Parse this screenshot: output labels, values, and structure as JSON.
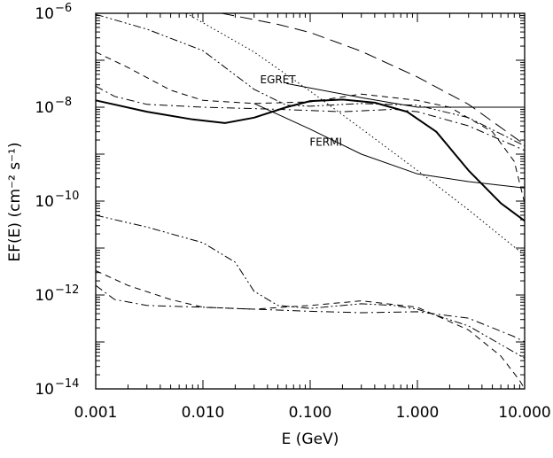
{
  "chart_data": {
    "type": "line",
    "xscale": "log",
    "yscale": "log",
    "xlim": [
      0.001,
      10.0
    ],
    "ylim": [
      1e-14,
      1e-06
    ],
    "xlabel": "E (GeV)",
    "ylabel": "EF(E)  (cm⁻² s⁻¹)",
    "xticks": [
      {
        "value": 0.001,
        "label": "0.001"
      },
      {
        "value": 0.01,
        "label": "0.010"
      },
      {
        "value": 0.1,
        "label": "0.100"
      },
      {
        "value": 1.0,
        "label": "1.000"
      },
      {
        "value": 10.0,
        "label": "10.000"
      }
    ],
    "yticks": [
      {
        "value": 1e-14,
        "base": "10",
        "exp": "−14"
      },
      {
        "value": 1e-12,
        "base": "10",
        "exp": "−12"
      },
      {
        "value": 1e-10,
        "base": "10",
        "exp": "−10"
      },
      {
        "value": 1e-08,
        "base": "10",
        "exp": "−8"
      },
      {
        "value": 1e-06,
        "base": "10",
        "exp": "−6"
      }
    ],
    "annotations": [
      {
        "text": "EGRET",
        "x": 0.05,
        "y": 3.2e-08
      },
      {
        "text": "FERMI",
        "x": 0.14,
        "y": 1.5e-09
      }
    ],
    "series": [
      {
        "style": "solid-thick",
        "x": [
          0.001,
          0.003,
          0.008,
          0.016,
          0.03,
          0.06,
          0.1,
          0.2,
          0.4,
          0.8,
          1.5,
          3.0,
          6.0,
          10.0
        ],
        "y": [
          1.4e-08,
          8e-09,
          5.5e-09,
          4.6e-09,
          6e-09,
          1e-08,
          1.35e-08,
          1.45e-08,
          1.25e-08,
          8e-09,
          3e-09,
          4.5e-10,
          9e-11,
          3.8e-11
        ]
      },
      {
        "style": "solid-thin-egret",
        "x": [
          0.06,
          0.3,
          1.0,
          10.0
        ],
        "y": [
          3.2e-08,
          1.6e-08,
          1e-08,
          1e-08
        ]
      },
      {
        "style": "solid-thin-fermi",
        "x": [
          0.03,
          0.1,
          0.3,
          1.0,
          3.0,
          10.0
        ],
        "y": [
          1.2e-08,
          3.4e-09,
          1e-09,
          3.8e-10,
          2.6e-10,
          1.9e-10
        ]
      },
      {
        "style": "long-dash",
        "x": [
          0.015,
          0.05,
          0.1,
          0.3,
          1.0,
          3.0,
          10.0
        ],
        "y": [
          1e-06,
          5.8e-07,
          3.9e-07,
          1.55e-07,
          4.4e-08,
          1.15e-08,
          1.6e-09
        ]
      },
      {
        "style": "dotted",
        "x": [
          0.007,
          0.03,
          0.1,
          0.3,
          1.0,
          3.0,
          10.0
        ],
        "y": [
          1e-06,
          1.5e-07,
          2.2e-08,
          3.5e-09,
          4.5e-10,
          6.5e-11,
          7e-12
        ]
      },
      {
        "style": "dash-dot-dot",
        "x": [
          0.001,
          0.003,
          0.01,
          0.03,
          0.06,
          0.1,
          0.3,
          1.0,
          3.0,
          10.0
        ],
        "y": [
          9.5e-07,
          4.6e-07,
          1.6e-07,
          2.4e-08,
          1.1e-08,
          1.05e-08,
          1.2e-08,
          1.1e-08,
          6e-09,
          1.5e-09
        ]
      },
      {
        "style": "dashed",
        "x": [
          0.001,
          0.002,
          0.005,
          0.01,
          0.03,
          0.1,
          0.3,
          1.0,
          2.0,
          5.0,
          8.0,
          10.0
        ],
        "y": [
          1.5e-07,
          7e-08,
          2.3e-08,
          1.4e-08,
          1.2e-08,
          1.3e-08,
          1.9e-08,
          1.4e-08,
          1e-08,
          3e-09,
          7e-10,
          9e-11
        ]
      },
      {
        "style": "dash-dot",
        "x": [
          0.001,
          0.0015,
          0.003,
          0.01,
          0.05,
          0.2,
          0.6,
          1.0,
          3.0,
          10.0
        ],
        "y": [
          2.8e-08,
          1.7e-08,
          1.15e-08,
          1e-08,
          9e-09,
          8e-09,
          9e-09,
          8e-09,
          4e-09,
          1.2e-09
        ]
      },
      {
        "style": "dash-dot-dot",
        "x": [
          0.001,
          0.003,
          0.01,
          0.02,
          0.03,
          0.05,
          0.1,
          0.3,
          0.6,
          1.0,
          3.0,
          10.0
        ],
        "y": [
          5e-11,
          2.8e-11,
          1.3e-11,
          5e-12,
          1.2e-12,
          6e-13,
          5.2e-13,
          6.5e-13,
          6e-13,
          5e-13,
          2.2e-13,
          4.5e-14
        ]
      },
      {
        "style": "dashed",
        "x": [
          0.001,
          0.002,
          0.005,
          0.01,
          0.03,
          0.1,
          0.3,
          1.0,
          3.0,
          6.0,
          9.0,
          10.0
        ],
        "y": [
          3.3e-12,
          1.6e-12,
          8e-13,
          5.5e-13,
          5e-13,
          6e-13,
          7.5e-13,
          5.5e-13,
          1.8e-13,
          5e-14,
          1.5e-14,
          1e-14
        ]
      },
      {
        "style": "dash-dot",
        "x": [
          0.001,
          0.0015,
          0.003,
          0.01,
          0.03,
          0.1,
          0.3,
          1.0,
          3.0,
          8.0,
          10.0
        ],
        "y": [
          1.6e-12,
          8e-13,
          6e-13,
          5.5e-13,
          5e-13,
          4.5e-13,
          4.2e-13,
          4.4e-13,
          3.2e-13,
          1.3e-13,
          1e-13
        ]
      }
    ]
  }
}
